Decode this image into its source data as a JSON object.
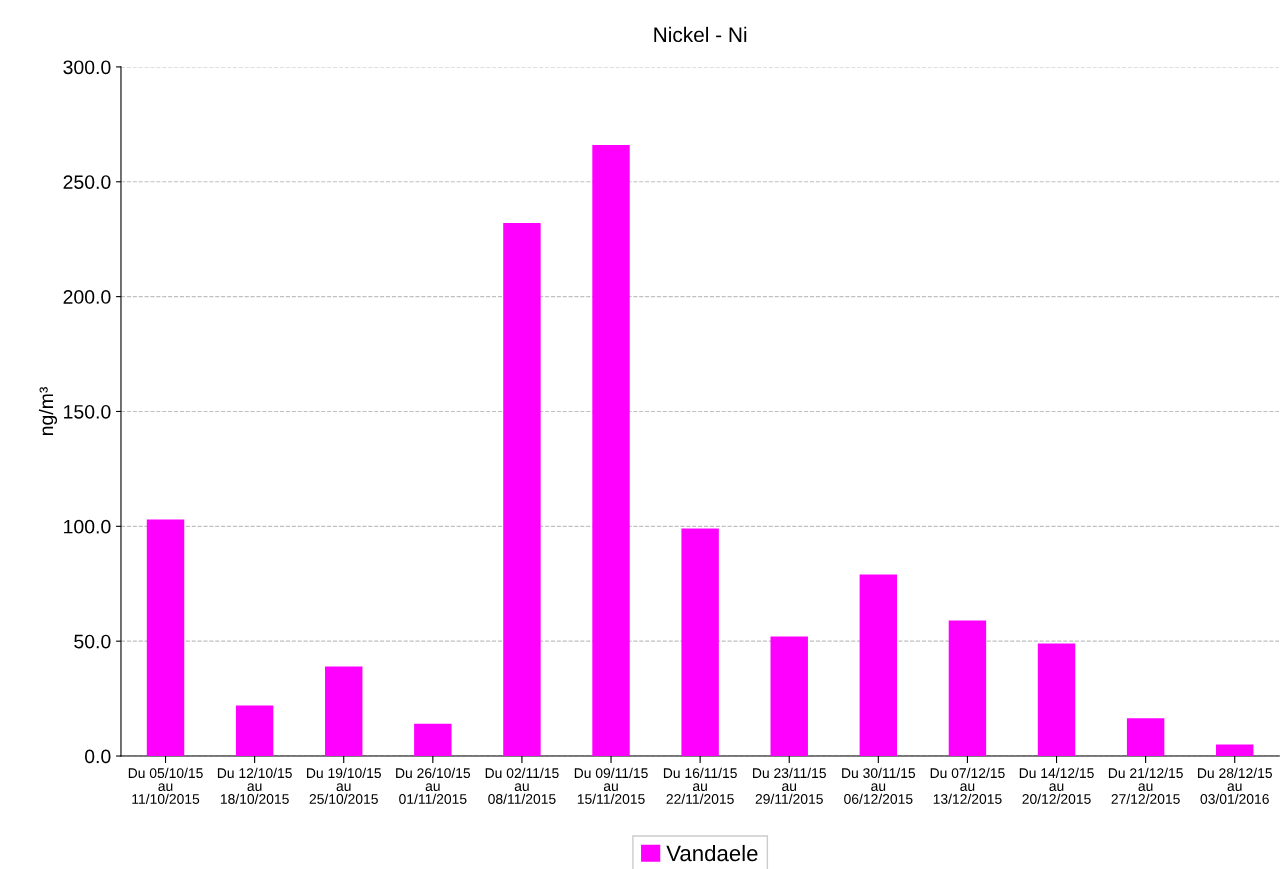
{
  "chart_data": {
    "type": "bar",
    "title": "Nickel - Ni",
    "ylabel": "ng/m³",
    "categories": [
      "Du 05/10/15\nau\n11/10/2015",
      "Du 12/10/15\nau\n18/10/2015",
      "Du 19/10/15\nau\n25/10/2015",
      "Du 26/10/15\nau\n01/11/2015",
      "Du 02/11/15\nau\n08/11/2015",
      "Du 09/11/15\nau\n15/11/2015",
      "Du 16/11/15\nau\n22/11/2015",
      "Du 23/11/15\nau\n29/11/2015",
      "Du 30/11/15\nau\n06/12/2015",
      "Du 07/12/15\nau\n13/12/2015",
      "Du 14/12/15\nau\n20/12/2015",
      "Du 21/12/15\nau\n27/12/2015",
      "Du 28/12/15\nau\n03/01/2016"
    ],
    "series": [
      {
        "name": "Vandaele",
        "color": "#ff00ff",
        "values": [
          103,
          22,
          39,
          14,
          232,
          266,
          99,
          52,
          79,
          59,
          49,
          16.5,
          5
        ]
      }
    ],
    "ylim": [
      0,
      300
    ],
    "yticks": [
      {
        "value": 0,
        "label": "0.0"
      },
      {
        "value": 50,
        "label": "50.0"
      },
      {
        "value": 100,
        "label": "100.0"
      },
      {
        "value": 150,
        "label": "150.0"
      },
      {
        "value": 200,
        "label": "200.0"
      },
      {
        "value": 250,
        "label": "250.0"
      },
      {
        "value": 300,
        "label": "300.0"
      }
    ],
    "grid": "y",
    "legend": "bottom"
  }
}
